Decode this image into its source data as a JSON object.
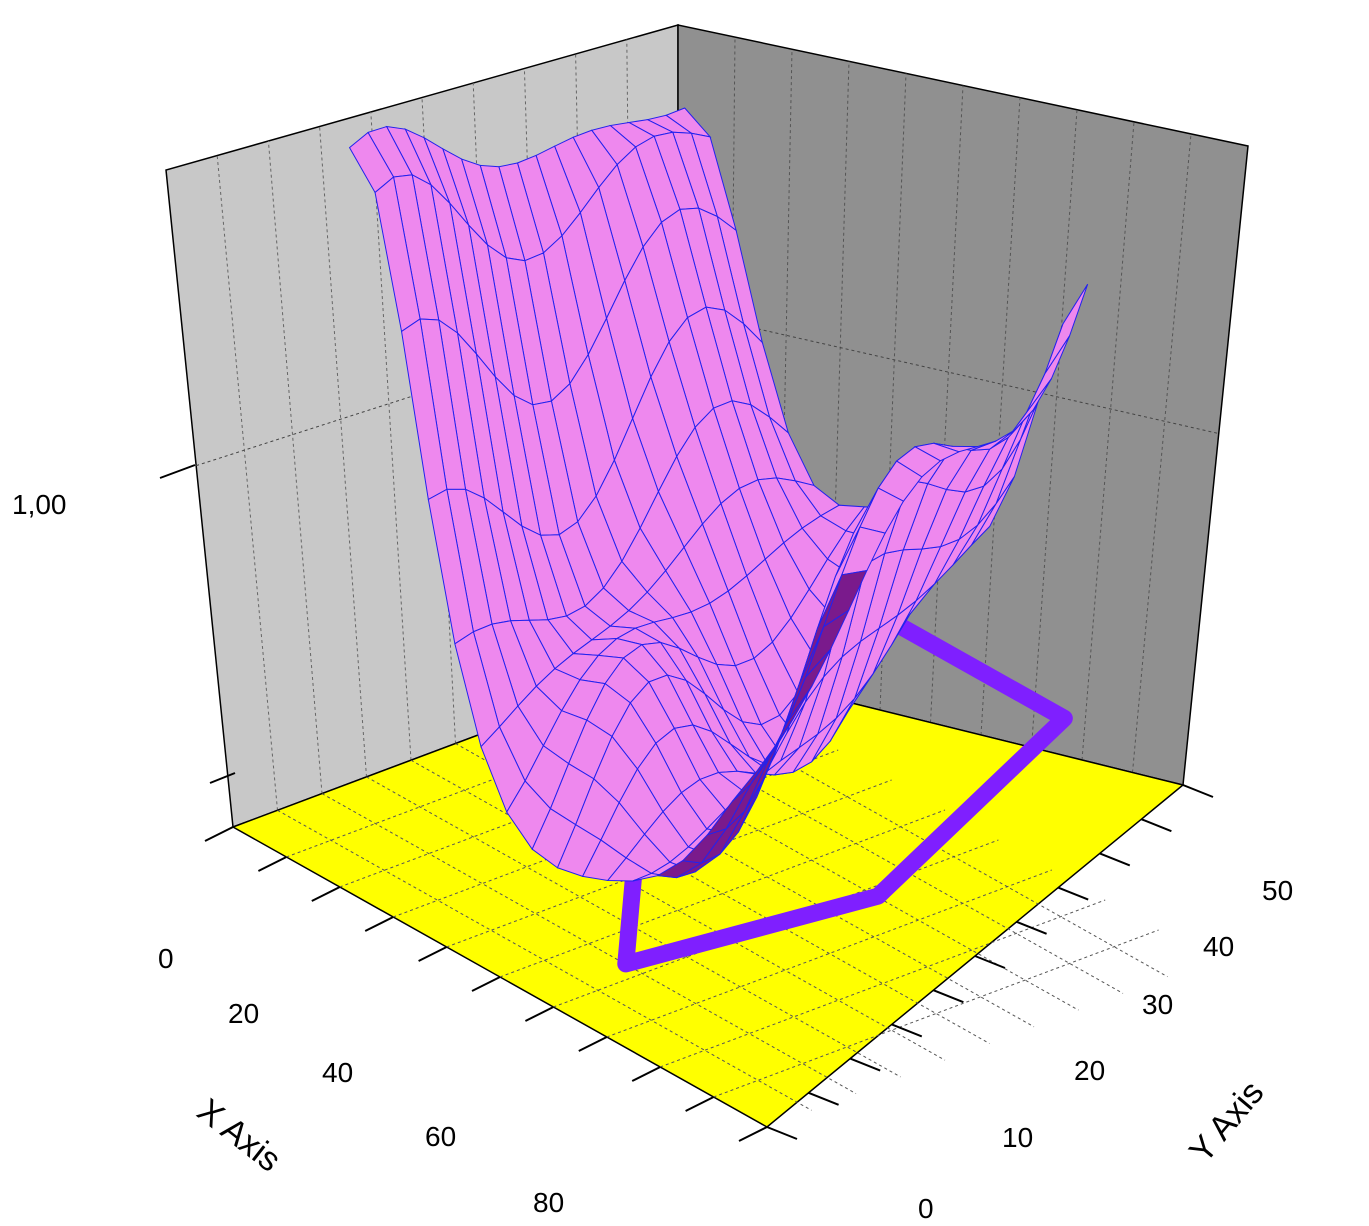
{
  "chart_data": {
    "type": "surface3d",
    "title": "",
    "xlabel": "X Axis",
    "ylabel": "Y Axis",
    "zlabel": "",
    "x_ticks": [
      "0",
      "20",
      "40",
      "60",
      "80"
    ],
    "y_ticks": [
      "0",
      "10",
      "20",
      "30",
      "40",
      "50"
    ],
    "z_ticks": [
      "1,00"
    ],
    "xlim": [
      0,
      90
    ],
    "ylim": [
      0,
      55
    ],
    "grid": true,
    "colors": {
      "surface_fill": "#ee88ee",
      "surface_mesh": "#2222ee",
      "surface_shadow": "#7a1a8c",
      "floor": "#ffff00",
      "projection_line": "#7f1fff",
      "left_wall": "#c8c8c8",
      "right_wall": "#909090"
    },
    "projection_path": [
      [
        5,
        52
      ],
      [
        10,
        46
      ],
      [
        18,
        43
      ],
      [
        27,
        42
      ],
      [
        36,
        40
      ],
      [
        40,
        32
      ],
      [
        38,
        24
      ],
      [
        56,
        8
      ],
      [
        73,
        28
      ],
      [
        70,
        55
      ],
      [
        28,
        55
      ],
      [
        10,
        54
      ]
    ]
  }
}
